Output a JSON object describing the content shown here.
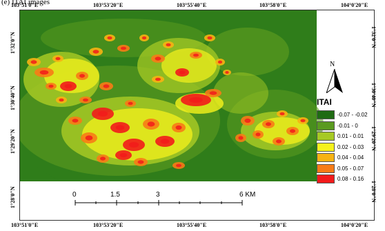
{
  "caption": "(e) ITAI images",
  "map": {
    "top_ticks": [
      "103°51'0\"E",
      "103°53'20\"E",
      "103°55'40\"E",
      "103°58'0\"E",
      "104°0'20\"E"
    ],
    "bottom_ticks": [
      "103°51'0\"E",
      "103°53'20\"E",
      "103°55'40\"E",
      "103°58'0\"E",
      "104°0'20\"E"
    ],
    "left_ticks": [
      "1°32'0\"N",
      "1°30'40\"N",
      "1°29'20\"N",
      "1°28'0\"N"
    ],
    "right_ticks": [
      "1°32'0\"N",
      "1°30'40\"N",
      "1°29'20\"N",
      "1°28'0\"N"
    ]
  },
  "north_arrow": {
    "label": "N"
  },
  "legend": {
    "title": "ITAI",
    "classes": [
      {
        "label": "-0.07 - -0.02",
        "color": "#1f6b13"
      },
      {
        "label": "-0.01 - 0",
        "color": "#5a9a1f"
      },
      {
        "label": "0.01 - 0.01",
        "color": "#a6c924"
      },
      {
        "label": "0.02 - 0.03",
        "color": "#f6f21c"
      },
      {
        "label": "0.04 - 0.04",
        "color": "#f7b313"
      },
      {
        "label": "0.05 - 0.07",
        "color": "#f77b16"
      },
      {
        "label": "0.08 - 0.16",
        "color": "#f21b1b"
      }
    ]
  },
  "scale_bar": {
    "labels": [
      "0",
      "1.5",
      "3",
      "6 KM"
    ]
  },
  "colors": {
    "background_green": "#2f7d1a",
    "frame": "#333333"
  }
}
